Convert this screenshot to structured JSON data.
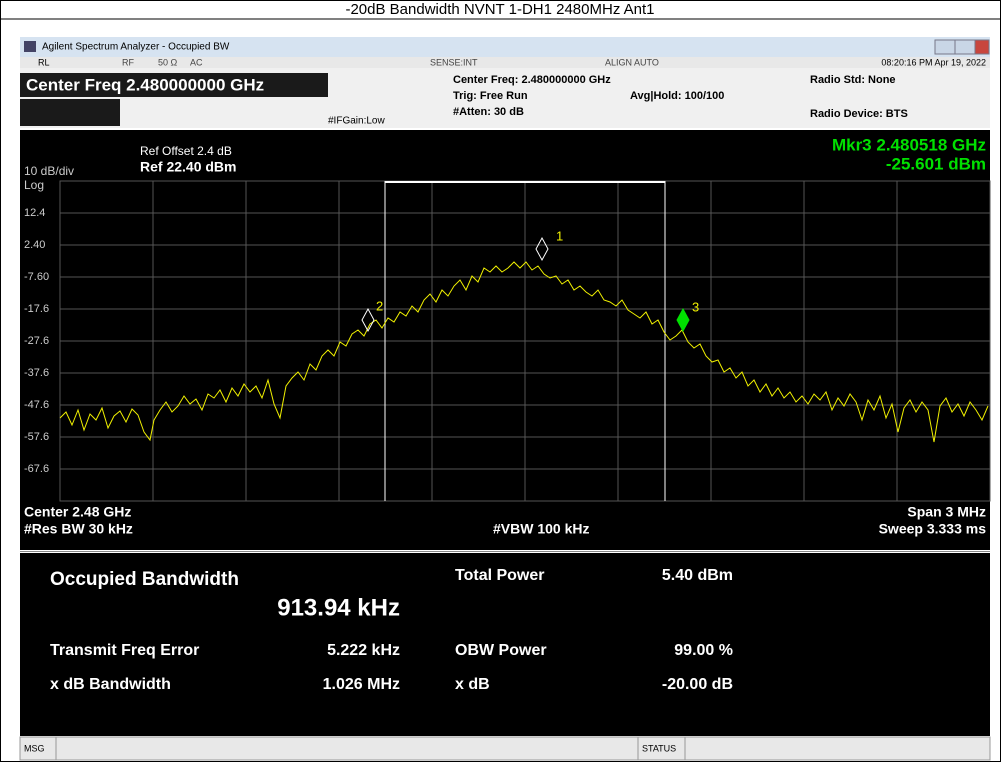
{
  "title": "-20dB Bandwidth NVNT 1-DH1 2480MHz Ant1",
  "window": {
    "title": "Agilent Spectrum Analyzer - Occupied BW"
  },
  "status_row": {
    "rl": "RL",
    "rf": "RF",
    "impedance": "50 Ω",
    "coupling": "AC",
    "sense": "SENSE:INT",
    "align": "ALIGN AUTO",
    "datetime": "08:20:16 PM Apr 19, 2022"
  },
  "settings": {
    "center_freq_big": "Center Freq 2.480000000 GHz",
    "ifgain": "#IFGain:Low",
    "center_freq": "Center Freq: 2.480000000 GHz",
    "trig": "Trig: Free Run",
    "atten": "#Atten: 30 dB",
    "avg_hold": "Avg|Hold: 100/100",
    "radio_std": "Radio Std: None",
    "radio_device": "Radio Device: BTS"
  },
  "plot": {
    "ref_offset": "Ref Offset 2.4 dB",
    "ref": "Ref 22.40 dBm",
    "scale": "10 dB/div",
    "log": "Log",
    "marker_readout": "Mkr3  2.480518 GHz",
    "marker_level": "-25.601 dBm",
    "y_labels": [
      "12.4",
      "2.40",
      "-7.60",
      "-17.6",
      "-27.6",
      "-37.6",
      "-47.6",
      "-57.6",
      "-67.6"
    ],
    "markers": [
      "1",
      "2",
      "3"
    ],
    "center": "Center  2.48 GHz",
    "res_bw": "#Res BW  30 kHz",
    "vbw": "#VBW  100 kHz",
    "span": "Span 3 MHz",
    "sweep": "Sweep  3.333 ms"
  },
  "results": {
    "obw_label": "Occupied Bandwidth",
    "obw_value": "913.94 kHz",
    "total_power_label": "Total Power",
    "total_power": "5.40 dBm",
    "tfe_label": "Transmit Freq Error",
    "tfe": "5.222 kHz",
    "obw_power_label": "OBW Power",
    "obw_power": "99.00 %",
    "xdb_bw_label": "x dB Bandwidth",
    "xdb_bw": "1.026 MHz",
    "xdb_label": "x dB",
    "xdb": "-20.00 dB"
  },
  "statusbar": {
    "msg": "MSG",
    "status": "STATUS"
  }
}
